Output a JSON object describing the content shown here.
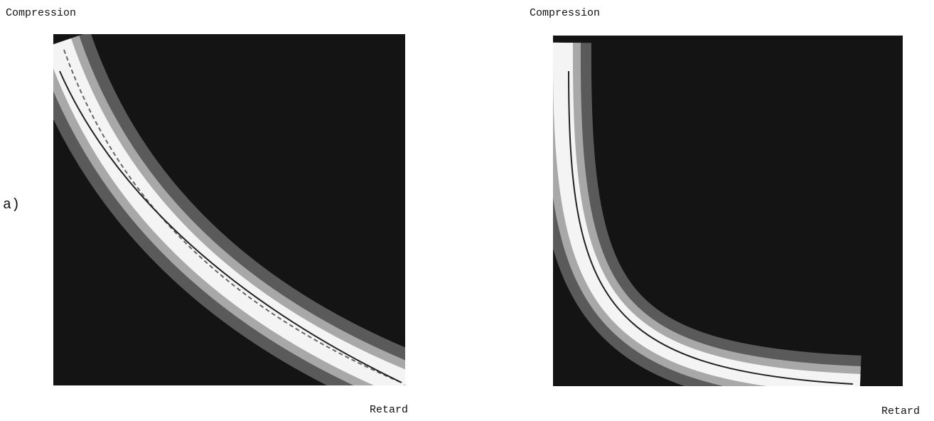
{
  "panels": [
    {
      "tag": "a)",
      "y_label": "Compression",
      "x_label": "Retard"
    },
    {
      "y_label": "Compression",
      "x_label": "Retard"
    }
  ]
}
